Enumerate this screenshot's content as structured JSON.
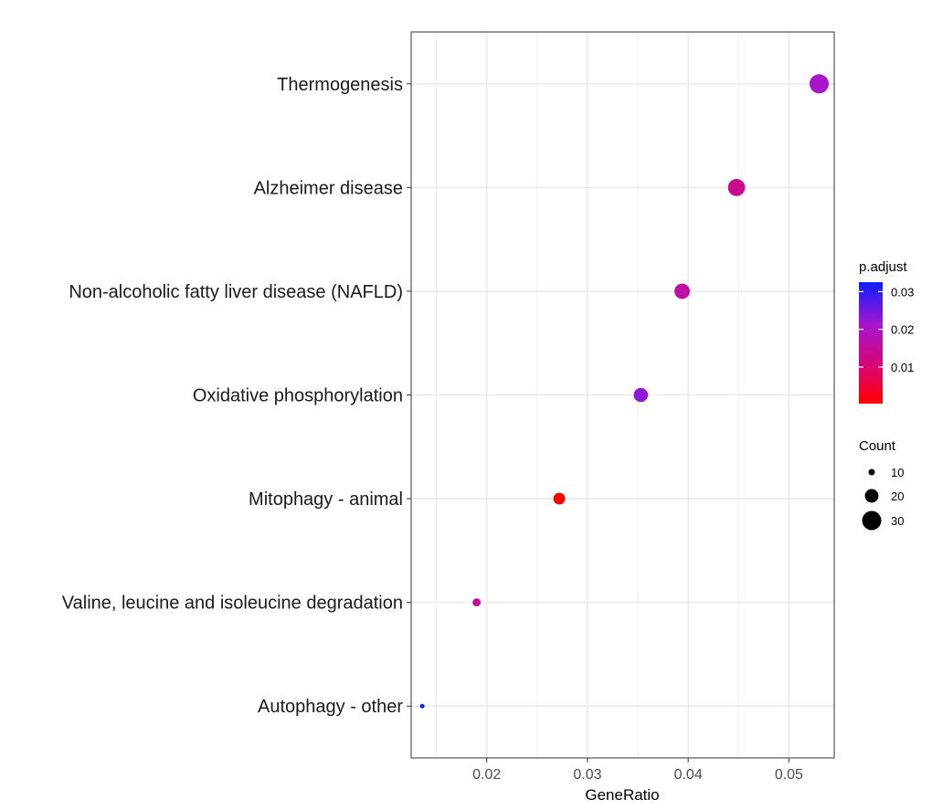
{
  "chart_data": {
    "type": "scatter",
    "xlabel": "GeneRatio",
    "ylabel": "",
    "xlim": [
      0.0125,
      0.0545
    ],
    "xticks": [
      0.02,
      0.03,
      0.04,
      0.05
    ],
    "xtick_labels": [
      "0.02",
      "0.03",
      "0.04",
      "0.05"
    ],
    "grid": true,
    "points": [
      {
        "category": "Thermogenesis",
        "gene_ratio": 0.053,
        "count": 30,
        "p_adjust": 0.021
      },
      {
        "category": "Alzheimer disease",
        "gene_ratio": 0.0448,
        "count": 26,
        "p_adjust": 0.013
      },
      {
        "category": "Non-alcoholic fatty liver disease (NAFLD)",
        "gene_ratio": 0.0394,
        "count": 23,
        "p_adjust": 0.016
      },
      {
        "category": "Oxidative phosphorylation",
        "gene_ratio": 0.0353,
        "count": 21,
        "p_adjust": 0.023
      },
      {
        "category": "Mitophagy - animal",
        "gene_ratio": 0.0272,
        "count": 17,
        "p_adjust": 0.0005
      },
      {
        "category": "Valine, leucine and isoleucine degradation",
        "gene_ratio": 0.019,
        "count": 12,
        "p_adjust": 0.015
      },
      {
        "category": "Autophagy - other",
        "gene_ratio": 0.0136,
        "count": 8,
        "p_adjust": 0.032
      }
    ],
    "color_legend": {
      "title": "p.adjust",
      "range": [
        0.0003,
        0.0325
      ],
      "ticks": [
        0.01,
        0.02,
        0.03
      ],
      "tick_labels": [
        "0.01",
        "0.02",
        "0.03"
      ],
      "low_color": "#ff0000",
      "high_color": "#0000ff"
    },
    "size_legend": {
      "title": "Count",
      "values": [
        10,
        20,
        30
      ],
      "labels": [
        "10",
        "20",
        "30"
      ],
      "color": "#000000"
    },
    "colors": {
      "grid": "#ebebeb",
      "panel_border": "#333333",
      "background": "#ffffff"
    }
  }
}
